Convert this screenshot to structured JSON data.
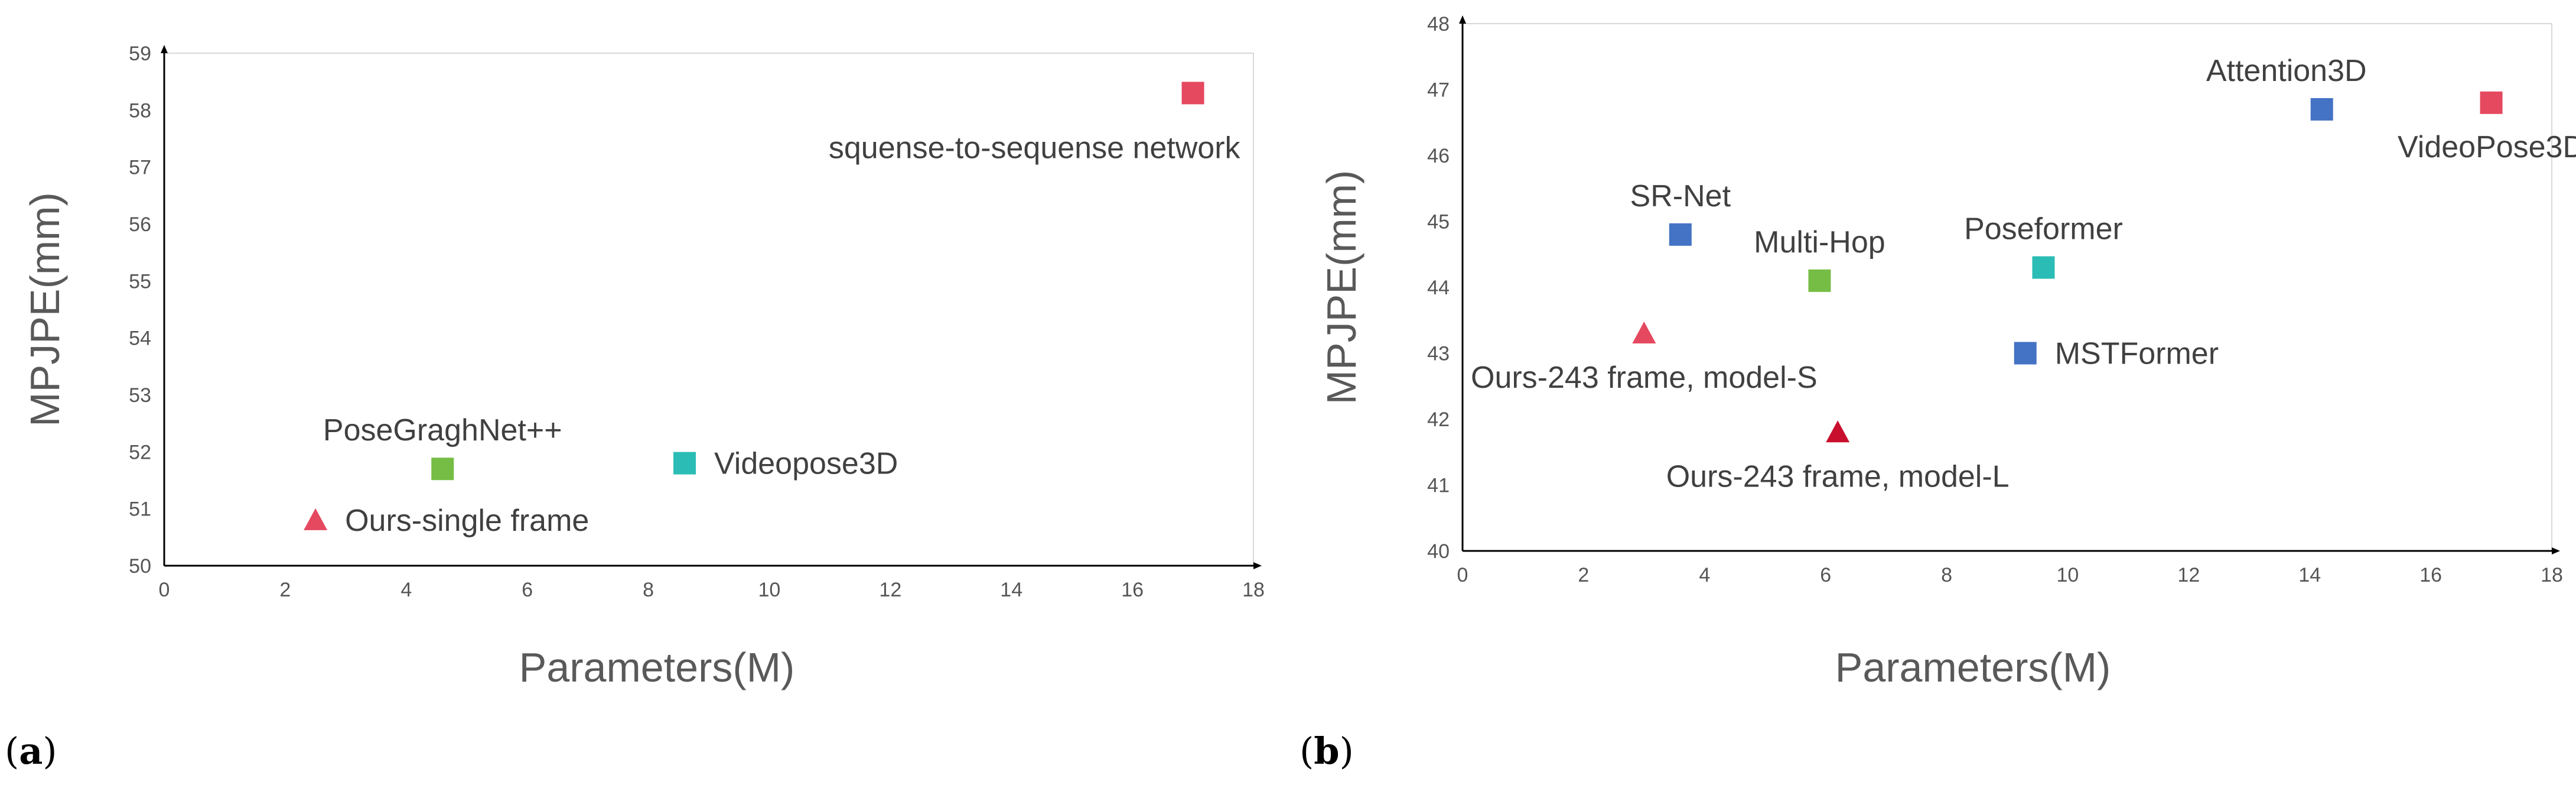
{
  "chart_data": [
    {
      "type": "scatter",
      "panel_label": "(a)",
      "xlabel": "Parameters(M)",
      "ylabel": "MPJPE(mm)",
      "xlim": [
        0,
        18
      ],
      "ylim": [
        50,
        59
      ],
      "xticks": [
        0,
        2,
        4,
        6,
        8,
        10,
        12,
        14,
        16,
        18
      ],
      "yticks": [
        50,
        51,
        52,
        53,
        54,
        55,
        56,
        57,
        58,
        59
      ],
      "grid": false,
      "points": [
        {
          "label": "squense-to-sequense network",
          "x": 17.0,
          "y": 58.3,
          "marker": "square",
          "color": "#e5495f",
          "label_pos": "below-left"
        },
        {
          "label": "PoseGraghNet++",
          "x": 4.6,
          "y": 51.7,
          "marker": "square",
          "color": "#76bd45",
          "label_pos": "above"
        },
        {
          "label": "Videopose3D",
          "x": 8.6,
          "y": 51.8,
          "marker": "square",
          "color": "#2bbdb5",
          "label_pos": "right"
        },
        {
          "label": "Ours-single frame",
          "x": 2.5,
          "y": 50.8,
          "marker": "triangle",
          "color": "#e5495f",
          "label_pos": "right"
        }
      ]
    },
    {
      "type": "scatter",
      "panel_label": "(b)",
      "xlabel": "Parameters(M)",
      "ylabel": "MPJPE(mm)",
      "xlim": [
        0,
        18
      ],
      "ylim": [
        40,
        48
      ],
      "xticks": [
        0,
        2,
        4,
        6,
        8,
        10,
        12,
        14,
        16,
        18
      ],
      "yticks": [
        40,
        41,
        42,
        43,
        44,
        45,
        46,
        47,
        48
      ],
      "grid": false,
      "points": [
        {
          "label": "Attention3D",
          "x": 14.2,
          "y": 46.7,
          "marker": "square",
          "color": "#4472c4",
          "label_pos": "above-left"
        },
        {
          "label": "VideoPose3D",
          "x": 17.0,
          "y": 46.8,
          "marker": "square",
          "color": "#e5495f",
          "label_pos": "below"
        },
        {
          "label": "SR-Net",
          "x": 3.6,
          "y": 44.8,
          "marker": "square",
          "color": "#4472c4",
          "label_pos": "above"
        },
        {
          "label": "Multi-Hop",
          "x": 5.9,
          "y": 44.1,
          "marker": "square",
          "color": "#76bd45",
          "label_pos": "above"
        },
        {
          "label": "Poseformer",
          "x": 9.6,
          "y": 44.3,
          "marker": "square",
          "color": "#2bbdb5",
          "label_pos": "above"
        },
        {
          "label": "MSTFormer",
          "x": 9.3,
          "y": 43.0,
          "marker": "square",
          "color": "#4472c4",
          "label_pos": "right"
        },
        {
          "label": "Ours-243 frame, model-S",
          "x": 3.0,
          "y": 43.3,
          "marker": "triangle",
          "color": "#e5495f",
          "label_pos": "below"
        },
        {
          "label": "Ours-243 frame, model-L",
          "x": 6.2,
          "y": 41.8,
          "marker": "triangle",
          "color": "#c8102e",
          "label_pos": "below"
        }
      ]
    }
  ]
}
